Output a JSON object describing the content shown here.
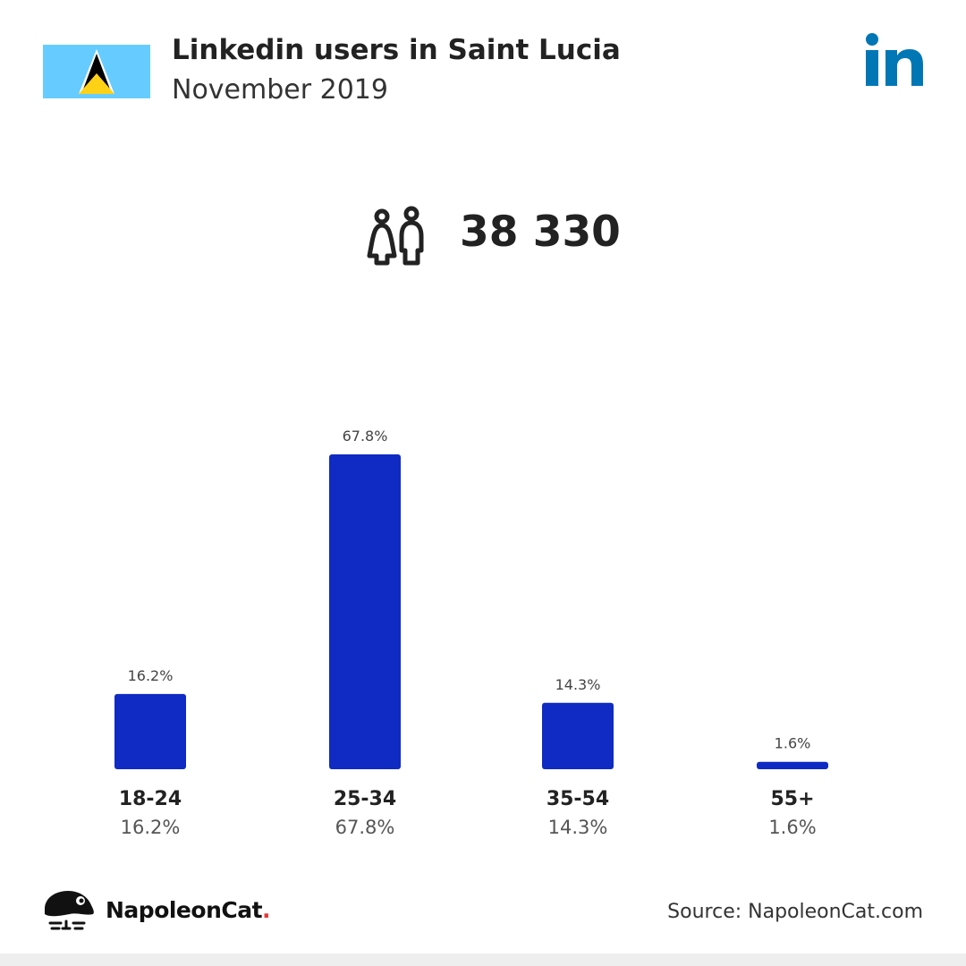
{
  "header": {
    "title": "Linkedin users in Saint Lucia",
    "subtitle": "November 2019"
  },
  "colors": {
    "bar": "#0f2bc3",
    "flag_blue": "#66ccff",
    "flag_gold": "#fcd116",
    "linkedin_blue": "#0077b5"
  },
  "icons": {
    "flag": "saint-lucia-flag-icon",
    "brand_logo": "linkedin-logo-icon",
    "users": "people-icon",
    "footer_logo": "napoleoncat-logo-icon"
  },
  "summary": {
    "total_users": "38 330"
  },
  "chart_data": {
    "type": "bar",
    "categories": [
      "18-24",
      "25-34",
      "35-54",
      "55+"
    ],
    "values": [
      16.2,
      67.8,
      14.3,
      1.6
    ],
    "value_labels": [
      "16.2%",
      "67.8%",
      "14.3%",
      "1.6%"
    ],
    "unit": "%",
    "ylim": [
      0,
      67.8
    ],
    "grid": false,
    "legend": "none"
  },
  "footer": {
    "brand_name": "NapoleonCat",
    "brand_dot": ".",
    "source": "Source: NapoleonCat.com"
  }
}
